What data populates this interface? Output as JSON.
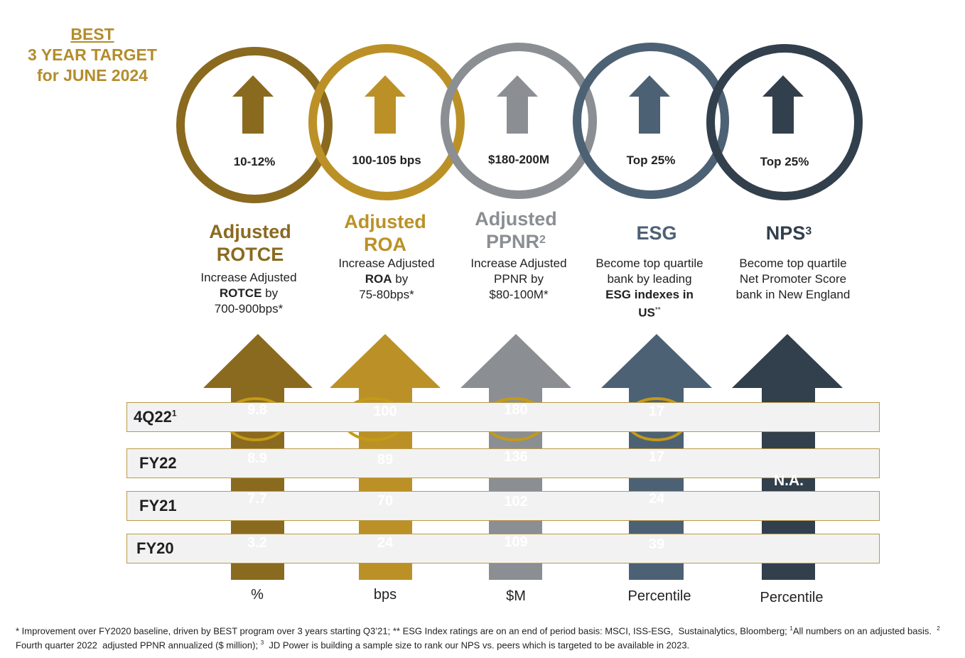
{
  "heading": {
    "line1": "BEST",
    "line2": "3 YEAR TARGET",
    "line3": "for JUNE 2024"
  },
  "colors": {
    "rotce": "#8a6a1f",
    "roa": "#bb9127",
    "ppnr": "#8b8e93",
    "esg": "#4d6175",
    "nps": "#323f4c",
    "highlight": "#c49a18"
  },
  "columns": [
    {
      "id": "rotce",
      "target": "10-12%",
      "metric_lines": [
        "Adjusted",
        "ROTCE"
      ],
      "metric_sup": "",
      "desc_html": "Increase Adjusted<br><b>ROTCE</b> by<br>700-900bps*",
      "unit": "%",
      "values": {
        "q4": "9.8",
        "fy22": "8.9",
        "fy21": "7.7",
        "fy20": "3.2"
      }
    },
    {
      "id": "roa",
      "target": "100-105 bps",
      "metric_lines": [
        "Adjusted",
        "ROA"
      ],
      "metric_sup": "",
      "desc_html": "Increase Adjusted<br><b>ROA</b> by<br>75-80bps*",
      "unit": "bps",
      "values": {
        "q4": "100",
        "fy22": "89",
        "fy21": "70",
        "fy20": "24"
      }
    },
    {
      "id": "ppnr",
      "target": "$180-200M",
      "metric_lines": [
        "Adjusted",
        "PPNR"
      ],
      "metric_sup": "2",
      "desc_html": "Increase Adjusted<br>PPNR by<br>$80-100M*",
      "unit": "$M",
      "values": {
        "q4": "180",
        "fy22": "136",
        "fy21": "102",
        "fy20": "109"
      }
    },
    {
      "id": "esg",
      "target": "Top 25%",
      "metric_lines": [
        "ESG"
      ],
      "metric_sup": "",
      "desc_html": "Become top quartile<br>bank by leading<br><b>ESG indexes in<br>US</b><sup>**</sup>",
      "unit": "Percentile",
      "values": {
        "q4": "17",
        "fy22": "17",
        "fy21": "24",
        "fy20": "39"
      }
    },
    {
      "id": "nps",
      "target": "Top 25%",
      "metric_lines": [
        "NPS"
      ],
      "metric_sup": "3",
      "desc_html": "Become top quartile<br>Net Promoter Score<br>bank in New England",
      "unit": "Percentile",
      "values": {
        "merged": "N.A."
      }
    }
  ],
  "rows": [
    {
      "key": "q4",
      "label": "4Q22",
      "sup": "1"
    },
    {
      "key": "fy22",
      "label": "FY22",
      "sup": ""
    },
    {
      "key": "fy21",
      "label": "FY21",
      "sup": ""
    },
    {
      "key": "fy20",
      "label": "FY20",
      "sup": ""
    }
  ],
  "footnote_html": "* Improvement over FY2020 baseline, driven by BEST program over 3 years starting Q3’21; ** ESG Index ratings are on an end of period basis: MSCI, ISS-ESG,&nbsp; Sustainalytics, Bloomberg; <sup>1</sup>All numbers on an adjusted basis.&nbsp; <sup>2</sup> Fourth quarter 2022&nbsp; adjusted PPNR annualized ($ million); <sup>3</sup>&nbsp; JD Power is building a sample size to rank our NPS vs. peers which is targeted to be available in 2023."
}
